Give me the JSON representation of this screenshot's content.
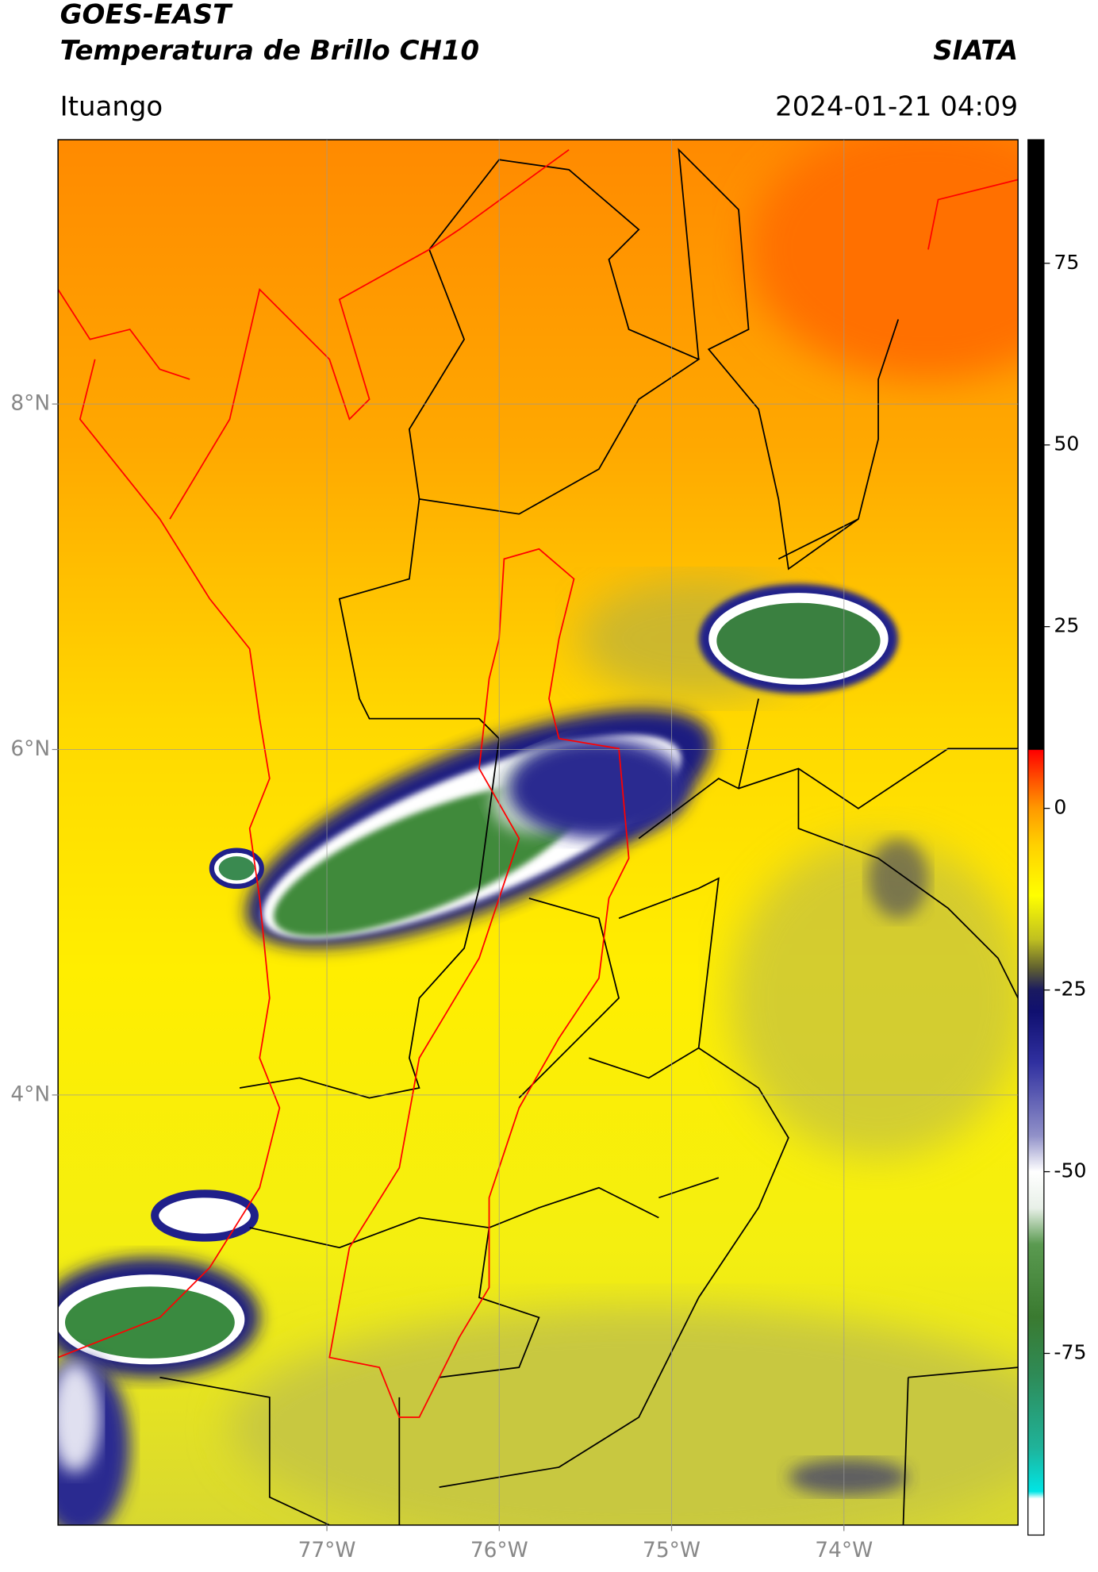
{
  "header": {
    "title": "GOES-EAST",
    "subtitle": "Temperatura de Brillo CH10",
    "agency": "SIATA",
    "region": "Ituango",
    "timestamp": "2024-01-21 04:09"
  },
  "map": {
    "xlim": [
      -78.56,
      -72.99
    ],
    "ylim": [
      1.51,
      9.53
    ],
    "xticks": [
      {
        "value": -77,
        "label": "77°W"
      },
      {
        "value": -76,
        "label": "76°W"
      },
      {
        "value": -75,
        "label": "75°W"
      },
      {
        "value": -74,
        "label": "74°W"
      }
    ],
    "yticks": [
      {
        "value": 8,
        "label": "8°N"
      },
      {
        "value": 6,
        "label": "6°N"
      },
      {
        "value": 4,
        "label": "4°N"
      }
    ],
    "grid": true
  },
  "colorbar": {
    "lim": [
      -100,
      92
    ],
    "ticks": [
      75,
      50,
      25,
      0,
      -25,
      -50,
      -75
    ],
    "stops": [
      [
        -100,
        "#ffffff"
      ],
      [
        -95,
        "#ffffff"
      ],
      [
        -94,
        "#00e5e5"
      ],
      [
        -88,
        "#1fb39a"
      ],
      [
        -78,
        "#2e8b57"
      ],
      [
        -70,
        "#3a7a30"
      ],
      [
        -60,
        "#5a9a50"
      ],
      [
        -55,
        "#e8f0e8"
      ],
      [
        -50,
        "#ffffff"
      ],
      [
        -45,
        "#9090c8"
      ],
      [
        -35,
        "#3030a0"
      ],
      [
        -28,
        "#101070"
      ],
      [
        -25,
        "#1a1a60"
      ],
      [
        -22,
        "#606030"
      ],
      [
        -18,
        "#c0c020"
      ],
      [
        -12,
        "#ffff00"
      ],
      [
        -5,
        "#ffd000"
      ],
      [
        0,
        "#ff9900"
      ],
      [
        4,
        "#ff5000"
      ],
      [
        8,
        "#ff0000"
      ],
      [
        8.1,
        "#000000"
      ],
      [
        92,
        "#000000"
      ]
    ]
  }
}
